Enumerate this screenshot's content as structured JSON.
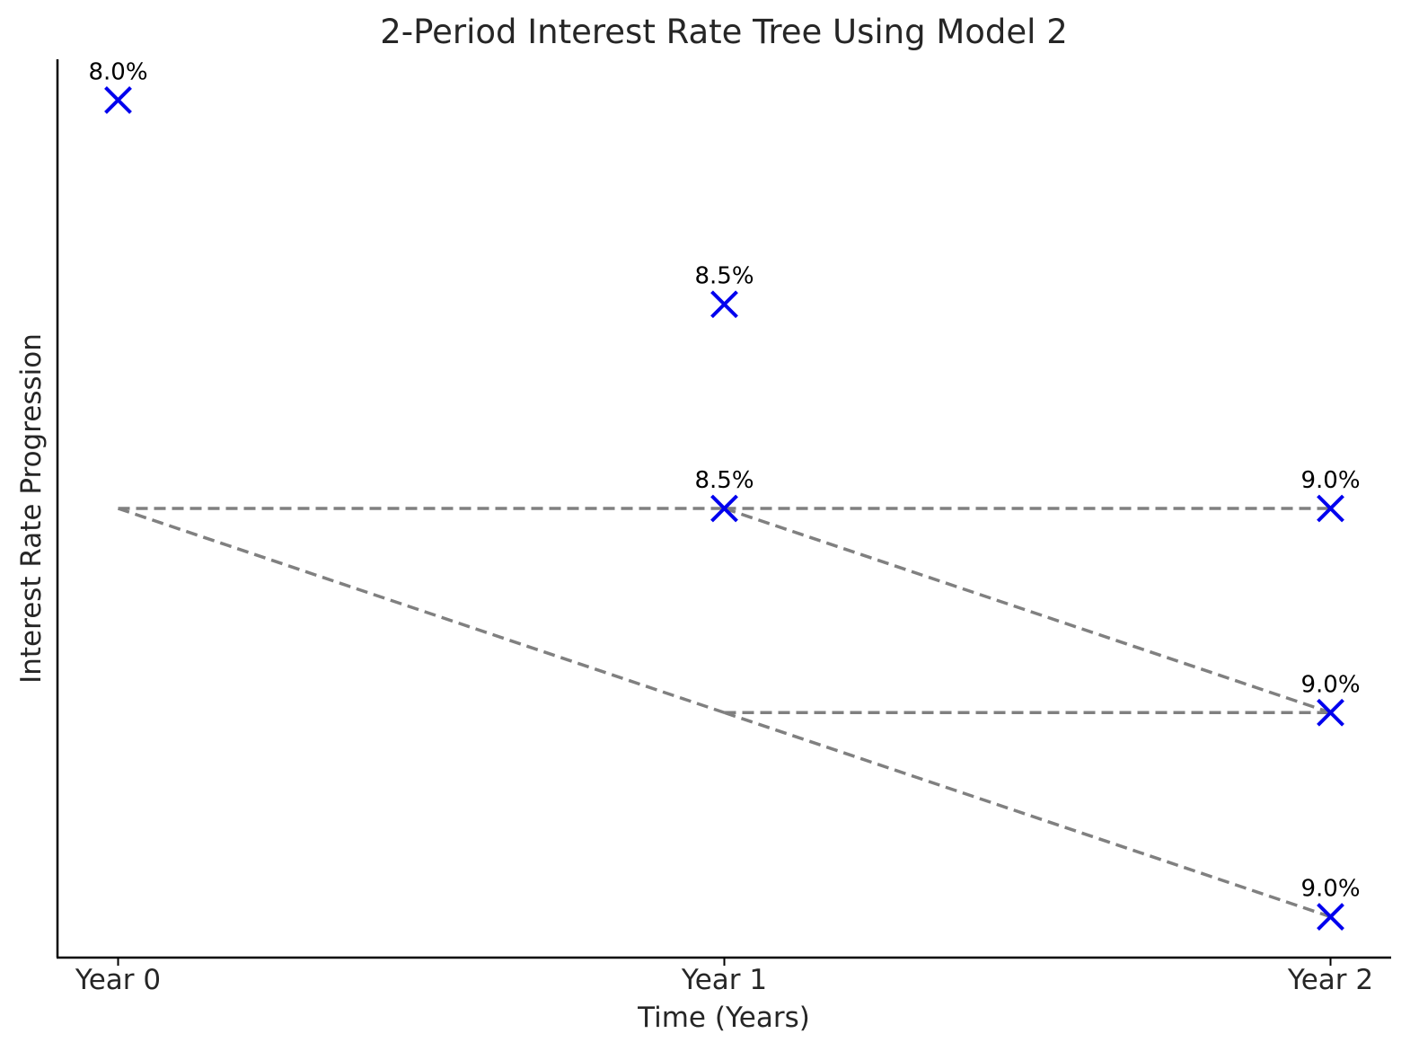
{
  "chart_data": {
    "type": "scatter",
    "title": "2-Period Interest Rate Tree Using Model 2",
    "xlabel": "Time (Years)",
    "ylabel": "Interest Rate Progression",
    "categories": [
      "Year 0",
      "Year 1",
      "Year 2"
    ],
    "nodes": [
      {
        "x": 0,
        "level": 1,
        "label": "8.0%",
        "rate": 8.0
      },
      {
        "x": 1,
        "level": 0,
        "label": "8.5%",
        "rate": 8.5
      },
      {
        "x": 1,
        "level": -1,
        "label": "8.5%",
        "rate": 8.5
      },
      {
        "x": 2,
        "level": -1,
        "label": "9.0%",
        "rate": 9.0
      },
      {
        "x": 2,
        "level": -2,
        "label": "9.0%",
        "rate": 9.0
      },
      {
        "x": 2,
        "level": -3,
        "label": "9.0%",
        "rate": 9.0
      }
    ],
    "edges": [
      {
        "from": [
          0,
          -1
        ],
        "to": [
          1,
          -1
        ]
      },
      {
        "from": [
          0,
          -1
        ],
        "to": [
          1,
          -2
        ]
      },
      {
        "from": [
          1,
          -1
        ],
        "to": [
          2,
          -1
        ]
      },
      {
        "from": [
          1,
          -1
        ],
        "to": [
          2,
          -2
        ]
      },
      {
        "from": [
          1,
          -2
        ],
        "to": [
          2,
          -2
        ]
      },
      {
        "from": [
          1,
          -2
        ],
        "to": [
          2,
          -3
        ]
      }
    ],
    "xlim": [
      -0.1,
      2.1
    ],
    "ylim": [
      -3.2,
      1.2
    ],
    "grid": false,
    "legend": "none",
    "colors": {
      "marker": "#0000ee",
      "edge": "#808080"
    },
    "marker": "x",
    "edge_style": "dashed"
  }
}
